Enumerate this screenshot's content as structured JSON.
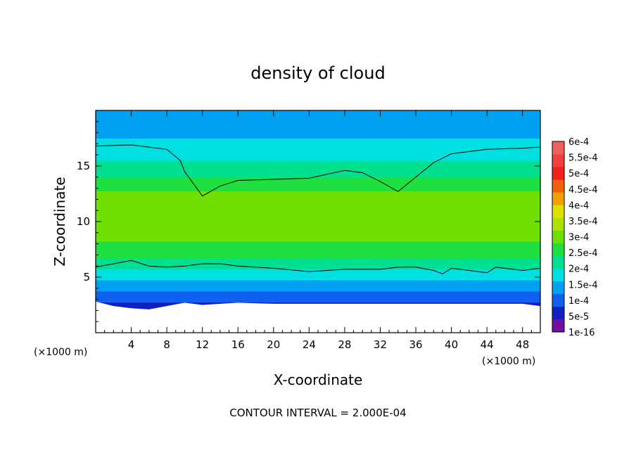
{
  "chart_data": {
    "type": "heatmap",
    "title": "density of cloud",
    "xlabel": "X-coordinate",
    "ylabel": "Z-coordinate",
    "x_unit_left": "(×1000 m)",
    "x_unit_right": "(×1000 m)",
    "footer": "CONTOUR INTERVAL = 2.000E-04",
    "xlim": [
      0,
      50
    ],
    "ylim": [
      0,
      20
    ],
    "x_ticks": [
      4,
      8,
      12,
      16,
      20,
      24,
      28,
      32,
      36,
      40,
      44,
      48
    ],
    "y_ticks": [
      5,
      10,
      15
    ],
    "colorbar": {
      "labels": [
        "6e-4",
        "5.5e-4",
        "5e-4",
        "4.5e-4",
        "4e-4",
        "3.5e-4",
        "3e-4",
        "2.5e-4",
        "2e-4",
        "1.5e-4",
        "1e-4",
        "5e-5",
        "1e-16"
      ],
      "colors": [
        "#f06060",
        "#f04040",
        "#f02020",
        "#f06010",
        "#f0a000",
        "#e0e000",
        "#b0e000",
        "#70e000",
        "#20e040",
        "#00e090",
        "#00e0e0",
        "#00a0f0",
        "#1060f0",
        "#1020c0",
        "#7010a0"
      ]
    },
    "cloud_top_contour": {
      "x": [
        0,
        4,
        8,
        9.5,
        10,
        12,
        14,
        16,
        20,
        24,
        28,
        30,
        32,
        34,
        36,
        38,
        40,
        44,
        48,
        50
      ],
      "z": [
        16.8,
        16.9,
        16.5,
        15.5,
        14.5,
        12.3,
        13.2,
        13.7,
        13.8,
        13.9,
        14.6,
        14.4,
        13.6,
        12.7,
        14.0,
        15.3,
        16.1,
        16.5,
        16.6,
        16.7
      ]
    },
    "cloud_base_contour": {
      "x": [
        0,
        2,
        4,
        6,
        8,
        10,
        12,
        14,
        16,
        20,
        24,
        26,
        28,
        32,
        34,
        36,
        38,
        39,
        40,
        42,
        44,
        45,
        46,
        48,
        50
      ],
      "z": [
        5.9,
        6.2,
        6.5,
        6.0,
        5.9,
        6.0,
        6.2,
        6.2,
        6.0,
        5.8,
        5.5,
        5.6,
        5.7,
        5.7,
        5.9,
        5.9,
        5.6,
        5.3,
        5.8,
        5.6,
        5.4,
        5.9,
        5.8,
        5.6,
        5.8
      ]
    },
    "cloud_bottom": {
      "x": [
        0,
        2,
        4,
        6,
        8,
        10,
        12,
        16,
        20,
        24,
        28,
        32,
        36,
        40,
        44,
        48,
        50
      ],
      "z": [
        2.8,
        2.4,
        2.2,
        2.1,
        2.4,
        2.7,
        2.5,
        2.7,
        2.6,
        2.6,
        2.6,
        2.6,
        2.6,
        2.6,
        2.6,
        2.6,
        2.4
      ]
    },
    "field_profile": {
      "z": [
        0,
        2.5,
        3.2,
        4.2,
        5.2,
        6.2,
        7.5,
        9.0,
        10.5,
        12.0,
        13.5,
        14.5,
        15.5,
        16.5,
        17.5,
        18.5,
        20.0
      ],
      "level": [
        0,
        1,
        2,
        3,
        4,
        5,
        6,
        7,
        7.5,
        7,
        6,
        5,
        4.5,
        4,
        3.5,
        3,
        2.5
      ]
    }
  }
}
